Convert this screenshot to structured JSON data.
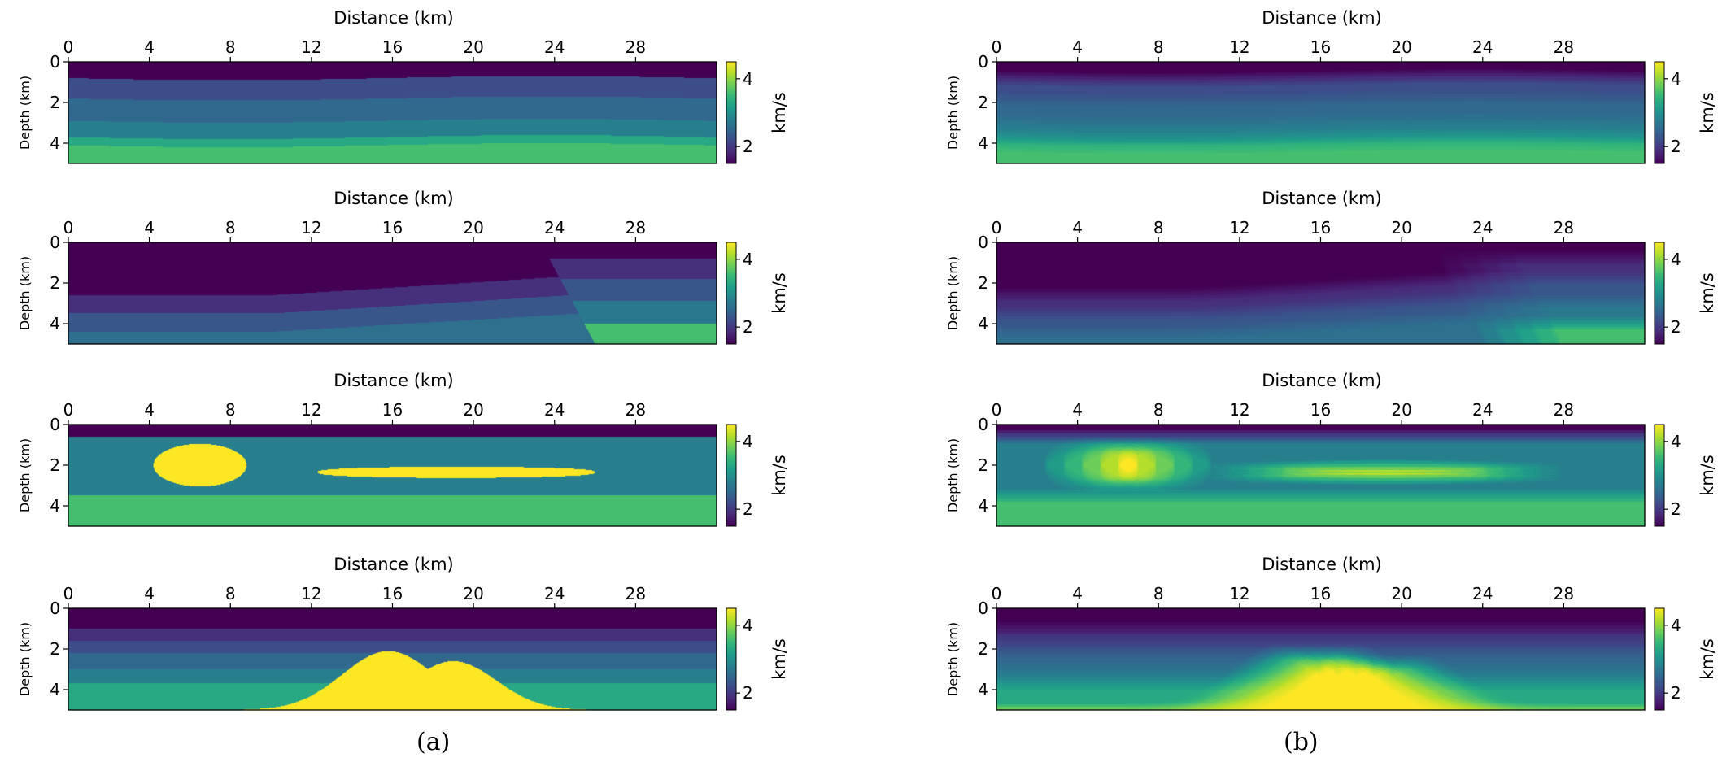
{
  "captions": [
    "(a)",
    "(b)"
  ],
  "chart_data": {
    "type": "heatmap",
    "grid": false,
    "panels": [
      {
        "column": "(a)",
        "model": "layered",
        "smooth": false,
        "xlabel": "Distance (km)",
        "ylabel": "Depth (km)",
        "colorbar_label": "km/s"
      },
      {
        "column": "(a)",
        "model": "fault",
        "smooth": false,
        "xlabel": "Distance (km)",
        "ylabel": "Depth (km)",
        "colorbar_label": "km/s"
      },
      {
        "column": "(a)",
        "model": "inclusions",
        "smooth": false,
        "xlabel": "Distance (km)",
        "ylabel": "Depth (km)",
        "colorbar_label": "km/s"
      },
      {
        "column": "(a)",
        "model": "dome",
        "smooth": false,
        "xlabel": "Distance (km)",
        "ylabel": "Depth (km)",
        "colorbar_label": "km/s"
      },
      {
        "column": "(b)",
        "model": "layered",
        "smooth": true,
        "xlabel": "Distance (km)",
        "ylabel": "Depth (km)",
        "colorbar_label": "km/s"
      },
      {
        "column": "(b)",
        "model": "fault",
        "smooth": true,
        "xlabel": "Distance (km)",
        "ylabel": "Depth (km)",
        "colorbar_label": "km/s"
      },
      {
        "column": "(b)",
        "model": "inclusions",
        "smooth": true,
        "xlabel": "Distance (km)",
        "ylabel": "Depth (km)",
        "colorbar_label": "km/s"
      },
      {
        "column": "(b)",
        "model": "dome",
        "smooth": true,
        "xlabel": "Distance (km)",
        "ylabel": "Depth (km)",
        "colorbar_label": "km/s"
      }
    ],
    "xlim": [
      0,
      32
    ],
    "ylim": [
      0,
      5
    ],
    "x_ticks": [
      0,
      4,
      8,
      12,
      16,
      20,
      24,
      28
    ],
    "y_ticks": [
      0,
      2,
      4
    ],
    "colorbar": {
      "range": [
        1.5,
        4.5
      ],
      "ticks": [
        2,
        4
      ],
      "colormap": "viridis"
    },
    "models": {
      "layered": {
        "layers": [
          {
            "top_depth": 0,
            "velocity": 1.5
          },
          {
            "top_depth": 0.8,
            "velocity": 2.2
          },
          {
            "top_depth": 1.8,
            "velocity": 2.5
          },
          {
            "top_depth": 2.9,
            "velocity": 2.8
          },
          {
            "top_depth": 3.7,
            "velocity": 3.3
          },
          {
            "top_depth": 4.1,
            "velocity": 3.6
          }
        ]
      },
      "fault": {
        "left_block": [
          {
            "top_depth": 0,
            "velocity": 1.5
          },
          {
            "top_depth": 2.6,
            "velocity": 1.9
          },
          {
            "top_depth": 3.5,
            "velocity": 2.3
          },
          {
            "top_depth": 4.4,
            "velocity": 2.6
          }
        ],
        "right_block": [
          {
            "top_depth": 0,
            "velocity": 1.5
          },
          {
            "top_depth": 0.8,
            "velocity": 1.9
          },
          {
            "top_depth": 1.8,
            "velocity": 2.3
          },
          {
            "top_depth": 2.9,
            "velocity": 2.7
          },
          {
            "top_depth": 4.0,
            "velocity": 3.6
          }
        ],
        "fault_x_top": 23.3,
        "fault_x_bottom": 26
      },
      "inclusions": {
        "background": [
          {
            "top_depth": 0,
            "velocity": 1.5
          },
          {
            "top_depth": 0.6,
            "velocity": 2.8
          },
          {
            "top_depth": 3.5,
            "velocity": 3.6
          }
        ],
        "velocity": 4.5,
        "ellipse": {
          "center_x": 6.5,
          "center_depth": 2.0,
          "half_width": 2.3,
          "half_depth": 1.05
        },
        "lens": {
          "x_start": 12.3,
          "x_end": 26,
          "center_depth": 2.35,
          "half_thickness": 0.28
        }
      },
      "dome": {
        "background": [
          {
            "top_depth": 0,
            "velocity": 1.5
          },
          {
            "top_depth": 1.0,
            "velocity": 1.9
          },
          {
            "top_depth": 1.6,
            "velocity": 2.2
          },
          {
            "top_depth": 2.2,
            "velocity": 2.5
          },
          {
            "top_depth": 3.0,
            "velocity": 2.8
          },
          {
            "top_depth": 3.7,
            "velocity": 3.3
          }
        ],
        "velocity": 4.5,
        "peaks": [
          {
            "x": 15.8,
            "top_depth": 2.1,
            "width": 3.2
          },
          {
            "x": 19.0,
            "top_depth": 2.6,
            "width": 3.0
          }
        ],
        "base_x_range": [
          8.2,
          26.5
        ]
      }
    }
  }
}
